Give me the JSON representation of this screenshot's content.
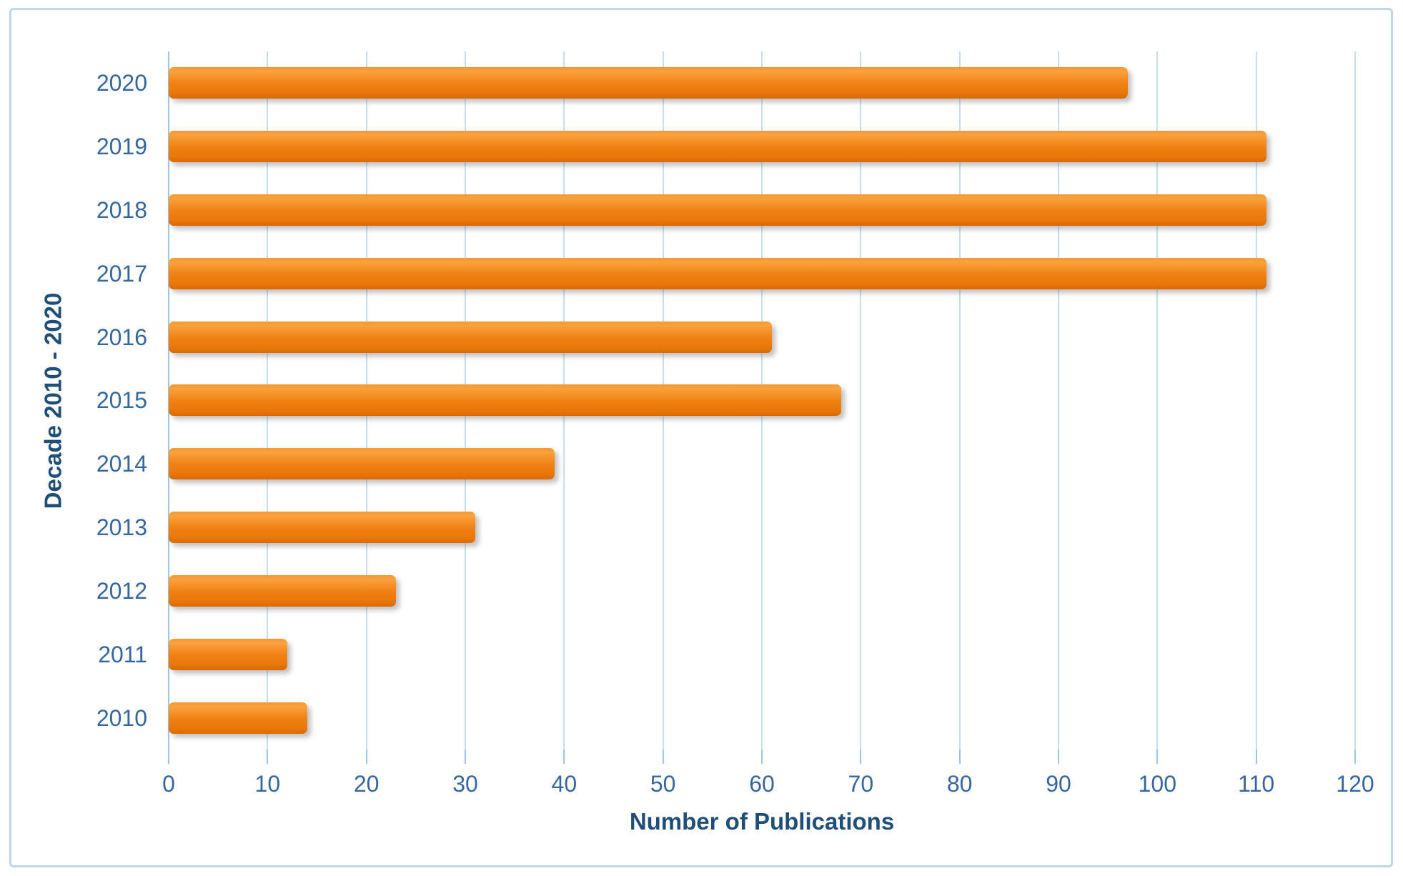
{
  "chart_data": {
    "type": "bar",
    "orientation": "horizontal",
    "title": "",
    "xlabel": "Number of Publications",
    "ylabel": "Decade 2010 - 2020",
    "row_order": "top-to-bottom",
    "categories": [
      "2020",
      "2019",
      "2018",
      "2017",
      "2016",
      "2015",
      "2014",
      "2013",
      "2012",
      "2011",
      "2010"
    ],
    "values": [
      97,
      111,
      111,
      111,
      61,
      68,
      39,
      31,
      23,
      12,
      14
    ],
    "xlim": [
      0,
      120
    ],
    "xticks": [
      0,
      10,
      20,
      30,
      40,
      50,
      60,
      70,
      80,
      90,
      100,
      110,
      120
    ],
    "grid": true,
    "legend_position": "none"
  },
  "style": {
    "background": "#FFFFFF",
    "frame_border_color": "#BCD6EC",
    "gridline_color": "#C7DEF2",
    "axis_line_color": "#9FC5E4",
    "tick_label_color": "#35679E",
    "axis_title_color": "#1F4E79",
    "bar_color_top": "#F9A23C",
    "bar_color_mid": "#F08014",
    "bar_color_bottom": "#D96A05"
  }
}
